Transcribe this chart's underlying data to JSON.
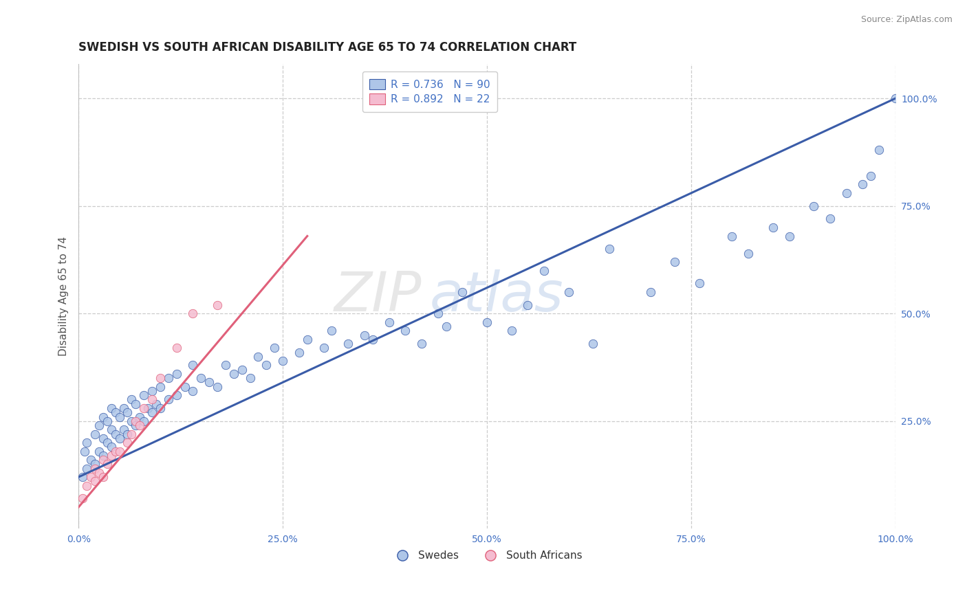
{
  "title": "SWEDISH VS SOUTH AFRICAN DISABILITY AGE 65 TO 74 CORRELATION CHART",
  "source_text": "Source: ZipAtlas.com",
  "ylabel": "Disability Age 65 to 74",
  "xlim": [
    0.0,
    1.0
  ],
  "ylim": [
    0.0,
    1.08
  ],
  "xtick_labels": [
    "0.0%",
    "25.0%",
    "50.0%",
    "75.0%",
    "100.0%"
  ],
  "xtick_vals": [
    0.0,
    0.25,
    0.5,
    0.75,
    1.0
  ],
  "ytick_labels": [
    "25.0%",
    "50.0%",
    "75.0%",
    "100.0%"
  ],
  "ytick_vals": [
    0.25,
    0.5,
    0.75,
    1.0
  ],
  "swedes_color": "#aec6e8",
  "south_africans_color": "#f5bcd0",
  "swedes_line_color": "#3a5ca8",
  "south_africans_line_color": "#e0607a",
  "R_swedes": 0.736,
  "N_swedes": 90,
  "R_south_africans": 0.892,
  "N_south_africans": 22,
  "title_fontsize": 12,
  "axis_label_fontsize": 11,
  "tick_fontsize": 10,
  "legend_fontsize": 11,
  "watermark_zip": "ZIP",
  "watermark_atlas": "atlas",
  "background_color": "#ffffff",
  "grid_color": "#cccccc",
  "tick_color": "#4472c4",
  "swedes_x": [
    0.005,
    0.007,
    0.01,
    0.01,
    0.015,
    0.02,
    0.02,
    0.025,
    0.025,
    0.03,
    0.03,
    0.03,
    0.035,
    0.035,
    0.04,
    0.04,
    0.04,
    0.045,
    0.045,
    0.05,
    0.05,
    0.055,
    0.055,
    0.06,
    0.06,
    0.065,
    0.065,
    0.07,
    0.07,
    0.075,
    0.08,
    0.08,
    0.085,
    0.09,
    0.09,
    0.095,
    0.1,
    0.1,
    0.11,
    0.11,
    0.12,
    0.12,
    0.13,
    0.14,
    0.14,
    0.15,
    0.16,
    0.17,
    0.18,
    0.19,
    0.2,
    0.21,
    0.22,
    0.23,
    0.24,
    0.25,
    0.27,
    0.28,
    0.3,
    0.31,
    0.33,
    0.35,
    0.36,
    0.38,
    0.4,
    0.42,
    0.44,
    0.45,
    0.47,
    0.5,
    0.53,
    0.55,
    0.57,
    0.6,
    0.63,
    0.65,
    0.7,
    0.73,
    0.76,
    0.8,
    0.82,
    0.85,
    0.87,
    0.9,
    0.92,
    0.94,
    0.96,
    0.97,
    0.98,
    1.0
  ],
  "swedes_y": [
    0.12,
    0.18,
    0.14,
    0.2,
    0.16,
    0.15,
    0.22,
    0.18,
    0.24,
    0.17,
    0.21,
    0.26,
    0.2,
    0.25,
    0.19,
    0.23,
    0.28,
    0.22,
    0.27,
    0.21,
    0.26,
    0.23,
    0.28,
    0.22,
    0.27,
    0.25,
    0.3,
    0.24,
    0.29,
    0.26,
    0.25,
    0.31,
    0.28,
    0.27,
    0.32,
    0.29,
    0.28,
    0.33,
    0.3,
    0.35,
    0.31,
    0.36,
    0.33,
    0.32,
    0.38,
    0.35,
    0.34,
    0.33,
    0.38,
    0.36,
    0.37,
    0.35,
    0.4,
    0.38,
    0.42,
    0.39,
    0.41,
    0.44,
    0.42,
    0.46,
    0.43,
    0.45,
    0.44,
    0.48,
    0.46,
    0.43,
    0.5,
    0.47,
    0.55,
    0.48,
    0.46,
    0.52,
    0.6,
    0.55,
    0.43,
    0.65,
    0.55,
    0.62,
    0.57,
    0.68,
    0.64,
    0.7,
    0.68,
    0.75,
    0.72,
    0.78,
    0.8,
    0.82,
    0.88,
    1.0
  ],
  "sa_x": [
    0.005,
    0.01,
    0.015,
    0.02,
    0.02,
    0.025,
    0.03,
    0.03,
    0.035,
    0.04,
    0.045,
    0.05,
    0.06,
    0.065,
    0.07,
    0.075,
    0.08,
    0.09,
    0.1,
    0.12,
    0.14,
    0.17
  ],
  "sa_y": [
    0.07,
    0.1,
    0.12,
    0.11,
    0.14,
    0.13,
    0.12,
    0.16,
    0.15,
    0.17,
    0.18,
    0.18,
    0.2,
    0.22,
    0.25,
    0.24,
    0.28,
    0.3,
    0.35,
    0.42,
    0.5,
    0.52
  ],
  "sa_line_x0": 0.0,
  "sa_line_x1": 0.28,
  "sa_line_y0": 0.05,
  "sa_line_y1": 0.68,
  "sw_line_x0": 0.0,
  "sw_line_x1": 1.0,
  "sw_line_y0": 0.12,
  "sw_line_y1": 1.0
}
